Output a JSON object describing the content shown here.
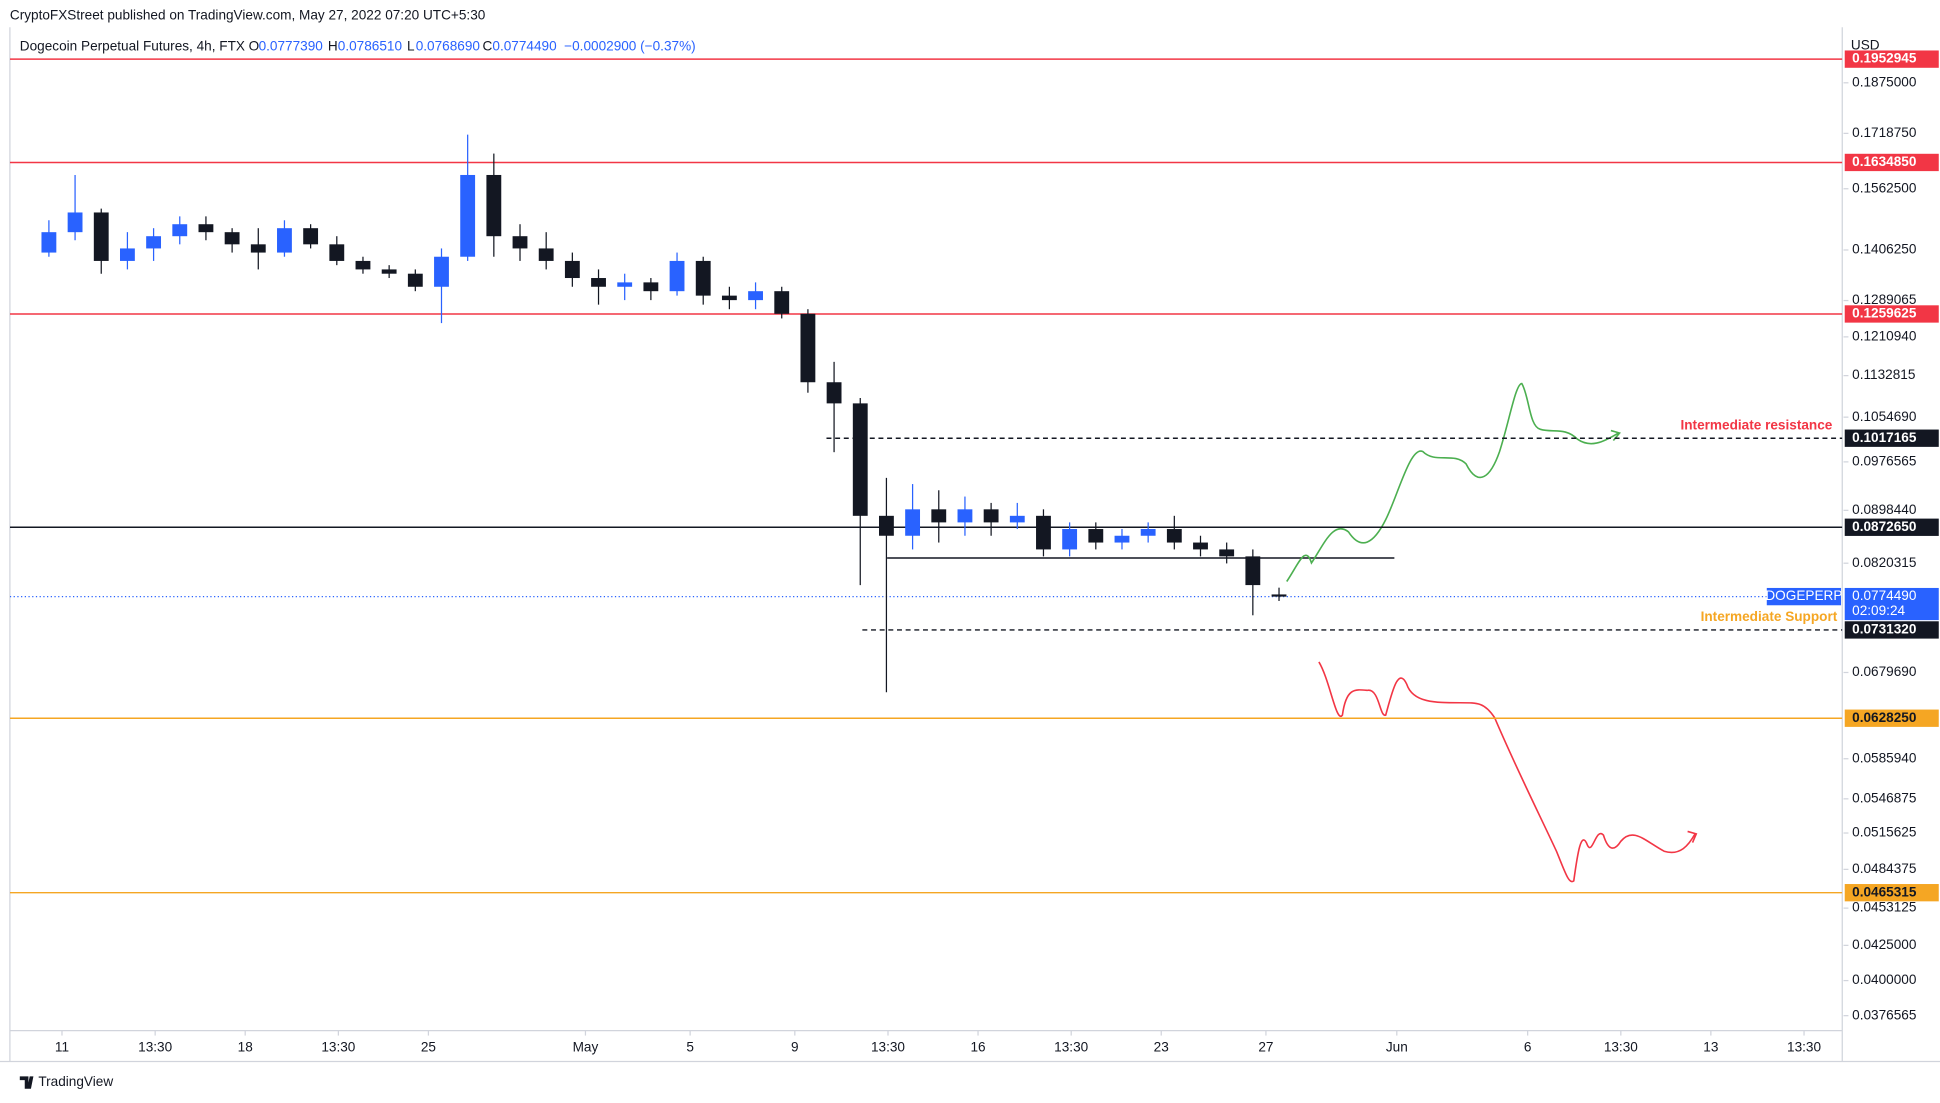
{
  "header": {
    "publisher": "CryptoFXStreet published on TradingView.com, May 27, 2022 07:20 UTC+5:30",
    "symbol": "Dogecoin Perpetual Futures, 4h, FTX",
    "open_label": "O",
    "open": "0.0777390",
    "high_label": "H",
    "high": "0.0786510",
    "low_label": "L",
    "low": "0.0768690",
    "close_label": "C",
    "close": "0.0774490",
    "change": "−0.0002900 (−0.37%)"
  },
  "footer": {
    "brand": "TradingView"
  },
  "chart_data": {
    "type": "candlestick",
    "currency": "USD",
    "log_scale": true,
    "up_color": "#2962ff",
    "down_color": "#131722",
    "x": [
      -1,
      0,
      1,
      2,
      3,
      4,
      5,
      6,
      7,
      8,
      9,
      10,
      11,
      12,
      13,
      14,
      15,
      16,
      17,
      18,
      19,
      20,
      21,
      22,
      23,
      24,
      25,
      26,
      27,
      28,
      29,
      30,
      31,
      32,
      33,
      34,
      35,
      36,
      37,
      38,
      39,
      40,
      41,
      42,
      43,
      44,
      45,
      46
    ],
    "open": [
      0.14,
      0.145,
      0.15,
      0.138,
      0.141,
      0.144,
      0.147,
      0.145,
      0.142,
      0.14,
      0.146,
      0.142,
      0.138,
      0.136,
      0.135,
      0.132,
      0.139,
      0.16,
      0.144,
      0.141,
      0.138,
      0.134,
      0.132,
      0.133,
      0.131,
      0.138,
      0.13,
      0.129,
      0.131,
      0.126,
      0.112,
      0.108,
      0.089,
      0.086,
      0.09,
      0.088,
      0.09,
      0.088,
      0.089,
      0.084,
      0.087,
      0.085,
      0.086,
      0.087,
      0.085,
      0.084,
      0.083,
      0.077739
    ],
    "high": [
      0.148,
      0.16,
      0.151,
      0.145,
      0.146,
      0.149,
      0.149,
      0.146,
      0.146,
      0.148,
      0.147,
      0.144,
      0.139,
      0.137,
      0.136,
      0.141,
      0.1715,
      0.166,
      0.147,
      0.145,
      0.14,
      0.136,
      0.135,
      0.134,
      0.14,
      0.139,
      0.132,
      0.133,
      0.132,
      0.127,
      0.116,
      0.109,
      0.095,
      0.094,
      0.093,
      0.092,
      0.091,
      0.091,
      0.09,
      0.088,
      0.088,
      0.087,
      0.088,
      0.089,
      0.086,
      0.085,
      0.084,
      0.078651
    ],
    "low": [
      0.139,
      0.143,
      0.135,
      0.136,
      0.138,
      0.142,
      0.143,
      0.14,
      0.136,
      0.139,
      0.141,
      0.137,
      0.135,
      0.134,
      0.131,
      0.124,
      0.138,
      0.139,
      0.138,
      0.136,
      0.132,
      0.128,
      0.129,
      0.129,
      0.13,
      0.128,
      0.127,
      0.127,
      0.125,
      0.11,
      0.0993,
      0.079,
      0.0657,
      0.084,
      0.085,
      0.086,
      0.086,
      0.087,
      0.083,
      0.083,
      0.084,
      0.084,
      0.085,
      0.084,
      0.083,
      0.082,
      0.075,
      0.076869
    ],
    "close": [
      0.145,
      0.15,
      0.138,
      0.141,
      0.144,
      0.147,
      0.145,
      0.142,
      0.14,
      0.146,
      0.142,
      0.138,
      0.136,
      0.135,
      0.132,
      0.139,
      0.16,
      0.144,
      0.141,
      0.138,
      0.134,
      0.132,
      0.133,
      0.131,
      0.138,
      0.13,
      0.129,
      0.131,
      0.126,
      0.112,
      0.108,
      0.089,
      0.086,
      0.09,
      0.088,
      0.09,
      0.088,
      0.089,
      0.084,
      0.087,
      0.085,
      0.086,
      0.087,
      0.085,
      0.084,
      0.083,
      0.079,
      0.077449
    ],
    "xlim": [
      -1.99,
      68.02
    ],
    "xticks": [
      {
        "value": 0,
        "label": "11"
      },
      {
        "value": 3.56,
        "label": "13:30"
      },
      {
        "value": 7,
        "label": "18"
      },
      {
        "value": 10.56,
        "label": "13:30"
      },
      {
        "value": 14,
        "label": "25"
      },
      {
        "value": 20,
        "label": "May"
      },
      {
        "value": 24,
        "label": "5"
      },
      {
        "value": 28,
        "label": "9"
      },
      {
        "value": 31.56,
        "label": "13:30"
      },
      {
        "value": 35,
        "label": "16"
      },
      {
        "value": 38.56,
        "label": "13:30"
      },
      {
        "value": 42,
        "label": "23"
      },
      {
        "value": 46,
        "label": "27"
      },
      {
        "value": 51,
        "label": "Jun"
      },
      {
        "value": 56,
        "label": "6"
      },
      {
        "value": 59.56,
        "label": "13:30"
      },
      {
        "value": 63,
        "label": "13"
      },
      {
        "value": 66.56,
        "label": "13:30"
      }
    ],
    "ylim": [
      0.0367,
      0.2037
    ],
    "yticks": [
      {
        "value": 0.1875,
        "label": "0.1875000"
      },
      {
        "value": 0.171875,
        "label": "0.1718750"
      },
      {
        "value": 0.15625,
        "label": "0.1562500"
      },
      {
        "value": 0.140625,
        "label": "0.1406250"
      },
      {
        "value": 0.1289065,
        "label": "0.1289065"
      },
      {
        "value": 0.121094,
        "label": "0.1210940"
      },
      {
        "value": 0.1132815,
        "label": "0.1132815"
      },
      {
        "value": 0.105469,
        "label": "0.1054690"
      },
      {
        "value": 0.0976565,
        "label": "0.0976565"
      },
      {
        "value": 0.089844,
        "label": "0.0898440"
      },
      {
        "value": 0.0820315,
        "label": "0.0820315"
      },
      {
        "value": 0.067969,
        "label": "0.0679690"
      },
      {
        "value": 0.058594,
        "label": "0.0585940"
      },
      {
        "value": 0.0546875,
        "label": "0.0546875"
      },
      {
        "value": 0.0515625,
        "label": "0.0515625"
      },
      {
        "value": 0.0484375,
        "label": "0.0484375"
      },
      {
        "value": 0.0453125,
        "label": "0.0453125"
      },
      {
        "value": 0.0425,
        "label": "0.0425000"
      },
      {
        "value": 0.04,
        "label": "0.0400000"
      },
      {
        "value": 0.0376565,
        "label": "0.0376565"
      }
    ],
    "levels": [
      {
        "value": 0.1952945,
        "label": "0.1952945",
        "color": "#f23645",
        "style": "solid"
      },
      {
        "value": 0.163485,
        "label": "0.1634850",
        "color": "#f23645",
        "style": "solid"
      },
      {
        "value": 0.1259625,
        "label": "0.1259625",
        "color": "#f23645",
        "style": "solid"
      },
      {
        "value": 0.1017165,
        "label": "0.1017165",
        "color": "#131722",
        "style": "dashed"
      },
      {
        "value": 0.087265,
        "label": "0.0872650",
        "color": "#131722",
        "style": "solid"
      },
      {
        "value": 0.073132,
        "label": "0.0731320",
        "color": "#131722",
        "style": "dashed"
      },
      {
        "value": 0.062825,
        "label": "0.0628250",
        "color": "#f5a623",
        "style": "solid"
      },
      {
        "value": 0.0465315,
        "label": "0.0465315",
        "color": "#f5a623",
        "style": "solid"
      }
    ],
    "last_price": {
      "value": 0.077449,
      "label": "0.0774490",
      "symbol": "DOGEPERP",
      "countdown": "02:09:24",
      "color": "#2962ff"
    },
    "annotations": [
      {
        "text": "Intermediate resistance",
        "color": "#f23645"
      },
      {
        "text": "Intermediate Support",
        "color": "#f5a623"
      }
    ]
  }
}
